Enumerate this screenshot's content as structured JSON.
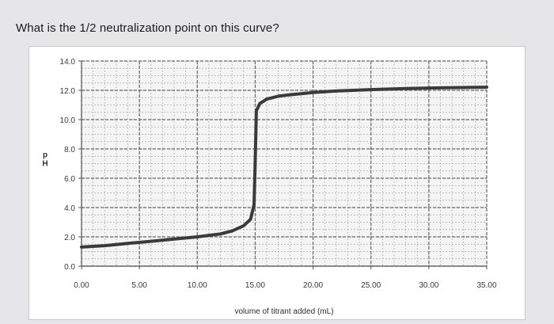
{
  "question": {
    "text": "What is the 1/2 neutralization point on this curve?"
  },
  "chart_data": {
    "type": "line",
    "title": "",
    "xlabel": "volume of titrant added (mL)",
    "ylabel": "pH",
    "xlim": [
      0,
      35
    ],
    "ylim": [
      0,
      14
    ],
    "x_ticks": [
      "0.00",
      "5.00",
      "10.00",
      "15.00",
      "20.00",
      "25.00",
      "30.00",
      "35.00"
    ],
    "y_ticks": [
      "0.0",
      "2.0",
      "4.0",
      "6.0",
      "8.0",
      "10.0",
      "12.0",
      "14.0"
    ],
    "grid": true,
    "legend": "none",
    "colors": {
      "line": "#3a3a3a",
      "grid": "#8a8a8a",
      "axis": "#555555"
    },
    "series": [
      {
        "values": [
          [
            0,
            1.3
          ],
          [
            2,
            1.4
          ],
          [
            4,
            1.55
          ],
          [
            6,
            1.7
          ],
          [
            8,
            1.85
          ],
          [
            10,
            2.0
          ],
          [
            12,
            2.2
          ],
          [
            13,
            2.4
          ],
          [
            14,
            2.75
          ],
          [
            14.6,
            3.2
          ],
          [
            14.9,
            4.2
          ],
          [
            15.0,
            7.0
          ],
          [
            15.1,
            10.6
          ],
          [
            15.4,
            11.1
          ],
          [
            16,
            11.4
          ],
          [
            17,
            11.6
          ],
          [
            18,
            11.7
          ],
          [
            20,
            11.85
          ],
          [
            22,
            11.95
          ],
          [
            25,
            12.05
          ],
          [
            28,
            12.12
          ],
          [
            31,
            12.17
          ],
          [
            34,
            12.2
          ],
          [
            35,
            12.21
          ]
        ]
      }
    ]
  }
}
